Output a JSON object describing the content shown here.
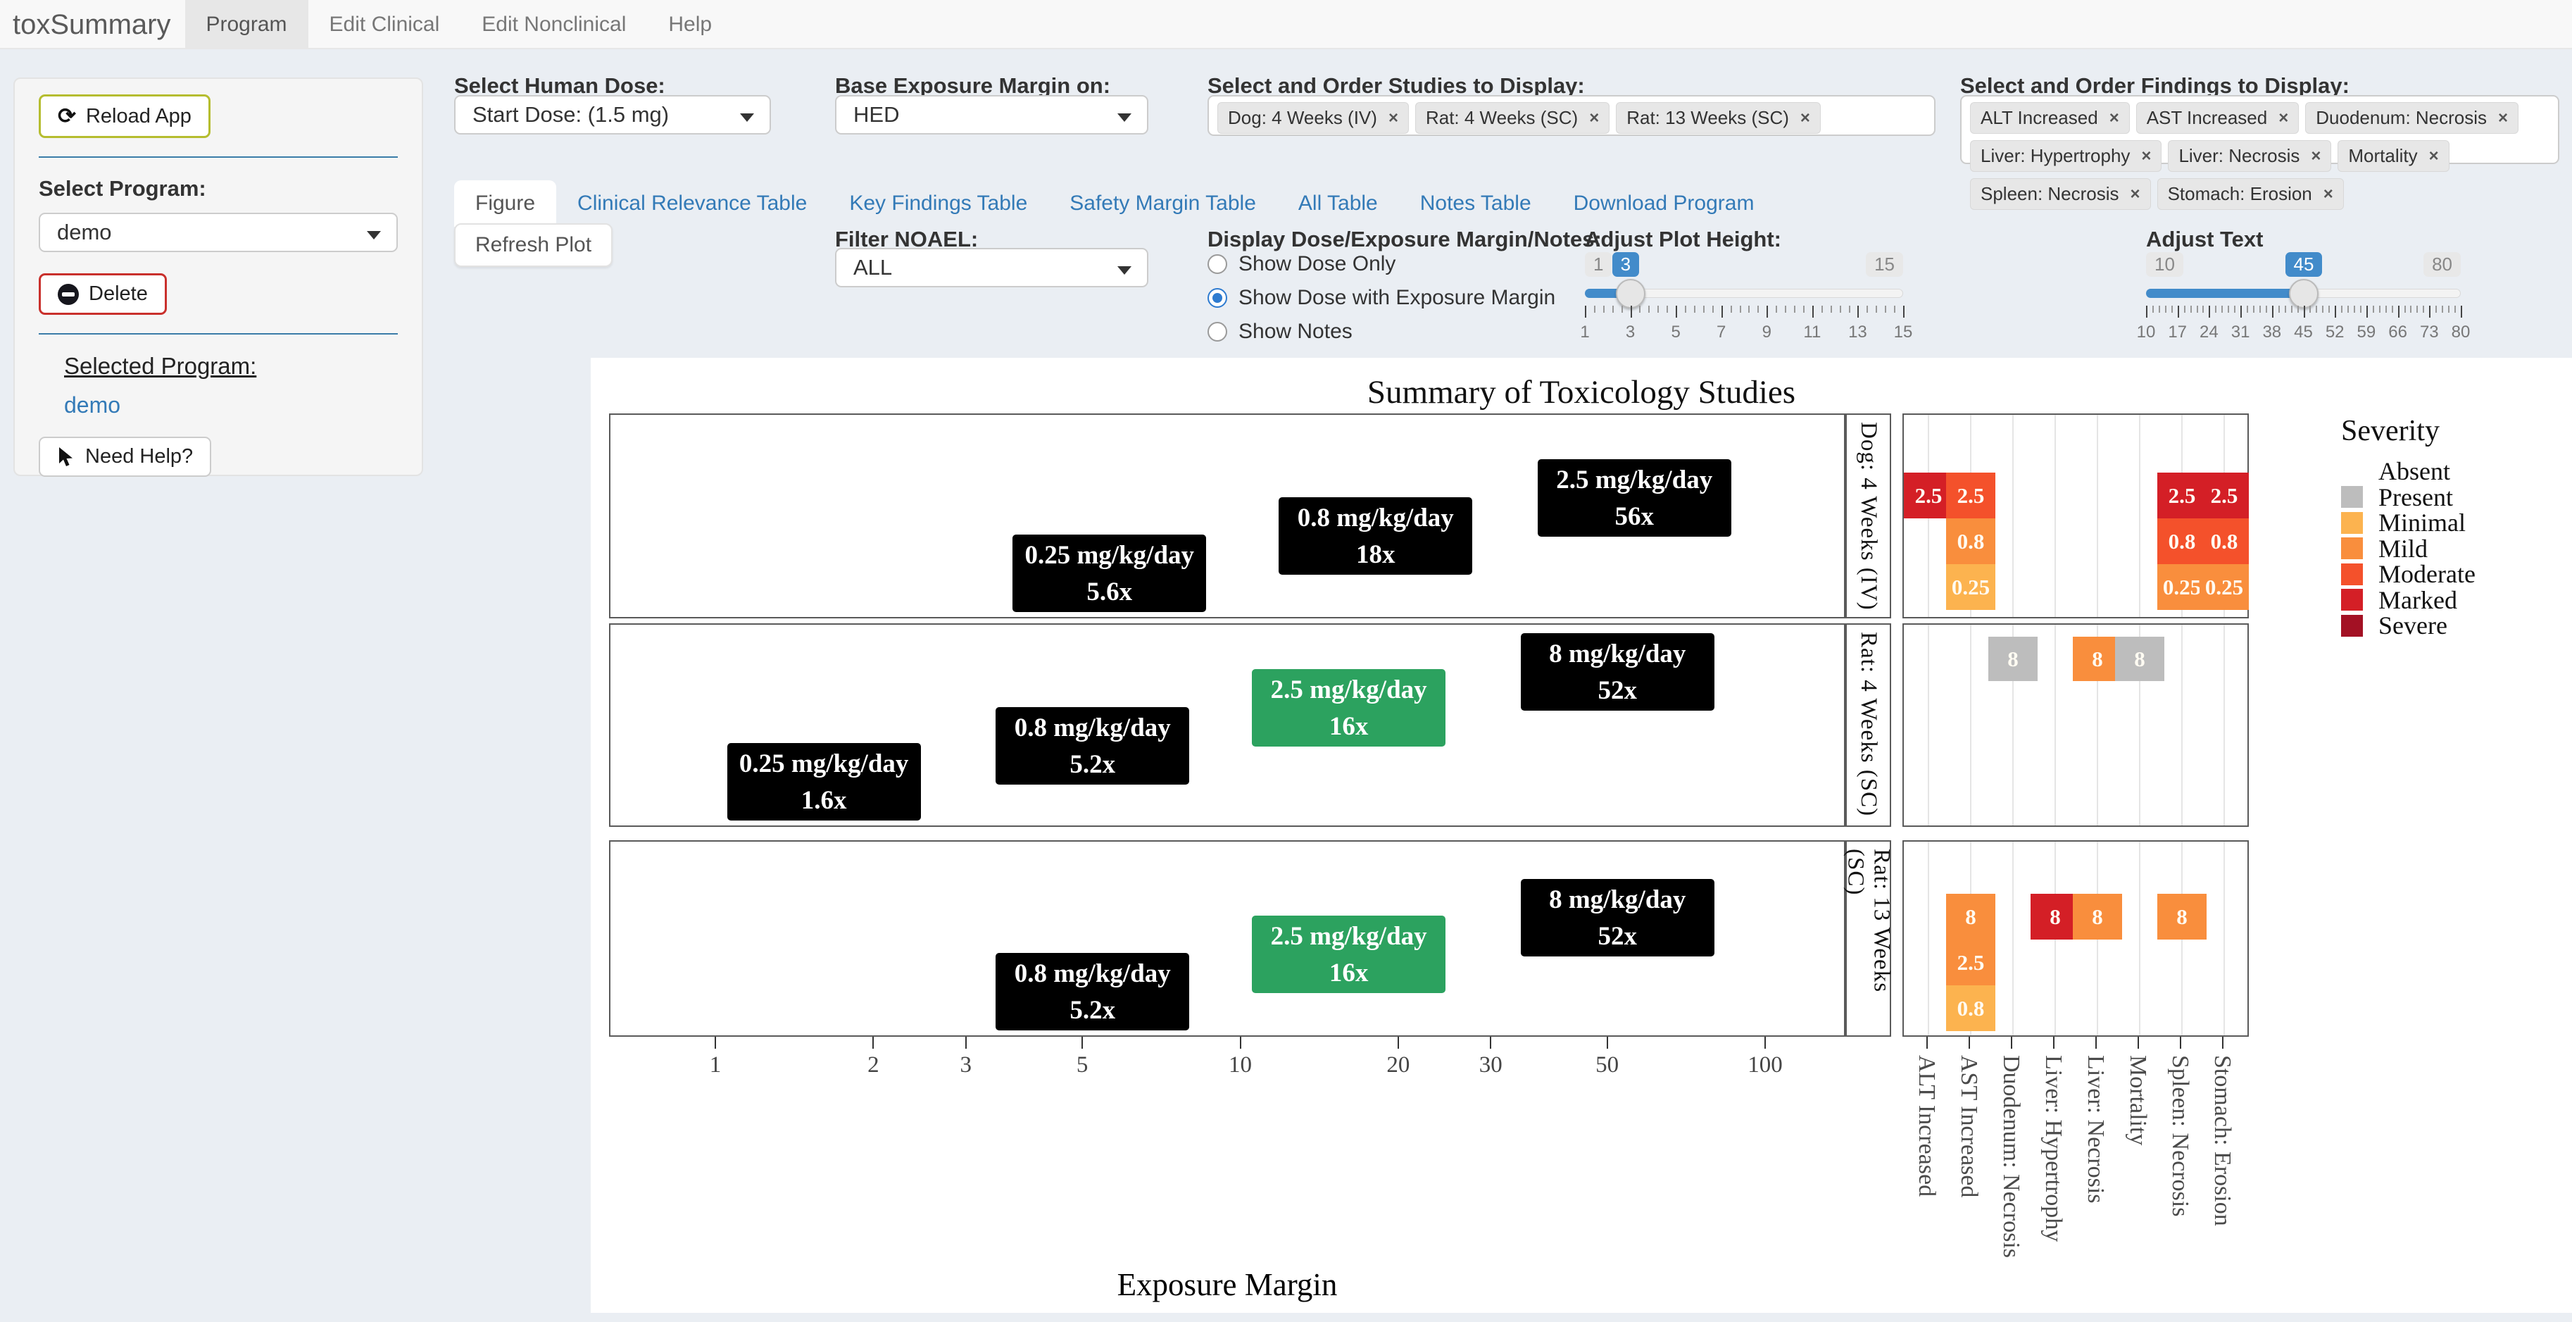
{
  "navbar": {
    "brand": "toxSummary",
    "items": [
      {
        "label": "Program",
        "active": true
      },
      {
        "label": "Edit Clinical",
        "active": false
      },
      {
        "label": "Edit Nonclinical",
        "active": false
      },
      {
        "label": "Help",
        "active": false
      }
    ]
  },
  "sidebar": {
    "reload_button": "Reload App",
    "select_program_label": "Select Program:",
    "program_value": "demo",
    "delete_button": "Delete",
    "selected_program_heading": "Selected Program:",
    "selected_program_value": "demo",
    "help_button": "Need Help?"
  },
  "controls": {
    "human_dose_label": "Select Human Dose:",
    "human_dose_value": "Start Dose: (1.5 mg)",
    "margin_base_label": "Base Exposure Margin on:",
    "margin_base_value": "HED",
    "studies_label": "Select and Order Studies to Display:",
    "studies_tags": [
      "Dog: 4 Weeks (IV)",
      "Rat: 4 Weeks (SC)",
      "Rat: 13 Weeks (SC)"
    ],
    "findings_label": "Select and Order Findings to Display:",
    "findings_tags": [
      "ALT Increased",
      "AST Increased",
      "Duodenum: Necrosis",
      "Liver: Hypertrophy",
      "Liver: Necrosis",
      "Mortality",
      "Spleen: Necrosis",
      "Stomach: Erosion"
    ],
    "tabs": [
      "Figure",
      "Clinical Relevance Table",
      "Key Findings Table",
      "Safety Margin Table",
      "All Table",
      "Notes Table",
      "Download Program"
    ],
    "active_tab": "Figure",
    "refresh_button": "Refresh Plot",
    "filter_noael_label": "Filter NOAEL:",
    "filter_noael_value": "ALL",
    "display_options_label": "Display Dose/Exposure Margin/Notes:",
    "display_options": [
      {
        "label": "Show Dose Only",
        "selected": false
      },
      {
        "label": "Show Dose with Exposure Margin",
        "selected": true
      },
      {
        "label": "Show Notes",
        "selected": false
      }
    ],
    "plot_height_slider": {
      "label": "Adjust Plot Height:",
      "min": 1,
      "max": 15,
      "value": 3,
      "tick_labels": [
        1,
        3,
        5,
        7,
        9,
        11,
        13,
        15
      ]
    },
    "text_slider": {
      "label": "Adjust Text",
      "min": 10,
      "max": 80,
      "value": 45,
      "tick_labels": [
        10,
        17,
        24,
        31,
        38,
        45,
        52,
        59,
        66,
        73,
        80
      ]
    }
  },
  "chart_data": {
    "type": "dose-exposure-summary",
    "title": "Summary of Toxicology Studies",
    "xlabel": "Exposure Margin",
    "x_scale": "log10",
    "x_ticks": [
      1,
      2,
      3,
      5,
      10,
      20,
      30,
      50,
      100
    ],
    "noael_color": "#2ca25f",
    "dose_color": "#000000",
    "studies": [
      {
        "name": "Dog: 4 Weeks (IV)",
        "doses": [
          {
            "dose": "0.25 mg/kg/day",
            "margin_label": "5.6x",
            "margin": 5.6,
            "noael": false,
            "slot": 2
          },
          {
            "dose": "0.8 mg/kg/day",
            "margin_label": "18x",
            "margin": 18,
            "noael": false,
            "slot": 1
          },
          {
            "dose": "2.5 mg/kg/day",
            "margin_label": "56x",
            "margin": 56,
            "noael": false,
            "slot": 0
          }
        ],
        "heatmap_cells": [
          {
            "col": 0,
            "slot": 0,
            "value": "2.5",
            "severity": "Marked"
          },
          {
            "col": 1,
            "slot": 0,
            "value": "2.5",
            "severity": "Moderate"
          },
          {
            "col": 1,
            "slot": 1,
            "value": "0.8",
            "severity": "Mild"
          },
          {
            "col": 1,
            "slot": 2,
            "value": "0.25",
            "severity": "Minimal"
          },
          {
            "col": 6,
            "slot": 0,
            "value": "2.5",
            "severity": "Marked"
          },
          {
            "col": 6,
            "slot": 1,
            "value": "0.8",
            "severity": "Moderate"
          },
          {
            "col": 6,
            "slot": 2,
            "value": "0.25",
            "severity": "Mild"
          },
          {
            "col": 7,
            "slot": 0,
            "value": "2.5",
            "severity": "Marked"
          },
          {
            "col": 7,
            "slot": 1,
            "value": "0.8",
            "severity": "Moderate"
          },
          {
            "col": 7,
            "slot": 2,
            "value": "0.25",
            "severity": "Mild"
          }
        ]
      },
      {
        "name": "Rat: 4 Weeks (SC)",
        "doses": [
          {
            "dose": "0.25 mg/kg/day",
            "margin_label": "1.6x",
            "margin": 1.6,
            "noael": false,
            "slot": 3
          },
          {
            "dose": "0.8 mg/kg/day",
            "margin_label": "5.2x",
            "margin": 5.2,
            "noael": false,
            "slot": 2
          },
          {
            "dose": "2.5 mg/kg/day",
            "margin_label": "16x",
            "margin": 16,
            "noael": true,
            "slot": 1
          },
          {
            "dose": "8 mg/kg/day",
            "margin_label": "52x",
            "margin": 52,
            "noael": false,
            "slot": 0
          }
        ],
        "heatmap_cells": [
          {
            "col": 2,
            "slot": 0,
            "value": "8",
            "severity": "Present"
          },
          {
            "col": 4,
            "slot": 0,
            "value": "8",
            "severity": "Mild"
          },
          {
            "col": 5,
            "slot": 0,
            "value": "8",
            "severity": "Present"
          }
        ]
      },
      {
        "name": "Rat: 13 Weeks (SC)",
        "doses": [
          {
            "dose": "0.8 mg/kg/day",
            "margin_label": "5.2x",
            "margin": 5.2,
            "noael": false,
            "slot": 2
          },
          {
            "dose": "2.5 mg/kg/day",
            "margin_label": "16x",
            "margin": 16,
            "noael": true,
            "slot": 1
          },
          {
            "dose": "8 mg/kg/day",
            "margin_label": "52x",
            "margin": 52,
            "noael": false,
            "slot": 0
          }
        ],
        "heatmap_cells": [
          {
            "col": 1,
            "slot": 0,
            "value": "8",
            "severity": "Mild"
          },
          {
            "col": 1,
            "slot": 1,
            "value": "2.5",
            "severity": "Mild"
          },
          {
            "col": 1,
            "slot": 2,
            "value": "0.8",
            "severity": "Minimal"
          },
          {
            "col": 3,
            "slot": 0,
            "value": "8",
            "severity": "Marked"
          },
          {
            "col": 4,
            "slot": 0,
            "value": "8",
            "severity": "Mild"
          },
          {
            "col": 6,
            "slot": 0,
            "value": "8",
            "severity": "Mild"
          }
        ]
      }
    ],
    "findings_columns": [
      "ALT Increased",
      "AST Increased",
      "Duodenum: Necrosis",
      "Liver: Hypertrophy",
      "Liver: Necrosis",
      "Mortality",
      "Spleen: Necrosis",
      "Stomach: Erosion"
    ],
    "legend": {
      "title": "Severity",
      "items": [
        {
          "label": "Absent",
          "color": "#ffffff"
        },
        {
          "label": "Present",
          "color": "#bdbdbd"
        },
        {
          "label": "Minimal",
          "color": "#fcb34f"
        },
        {
          "label": "Mild",
          "color": "#f98e3d"
        },
        {
          "label": "Moderate",
          "color": "#f4512b"
        },
        {
          "label": "Marked",
          "color": "#d41f26"
        },
        {
          "label": "Severe",
          "color": "#a31124"
        }
      ]
    }
  }
}
